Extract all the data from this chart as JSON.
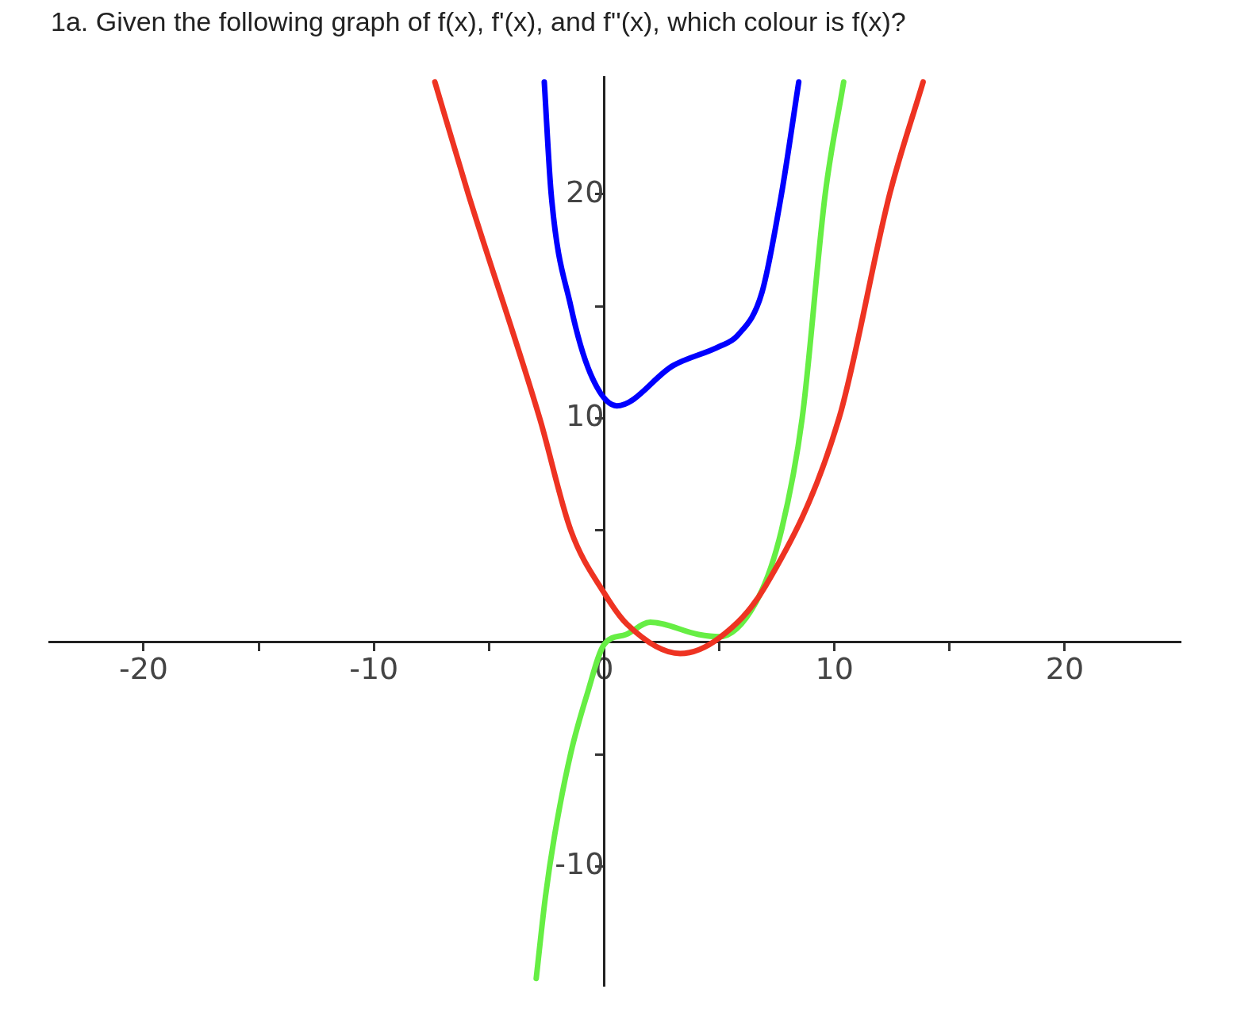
{
  "chart_data": {
    "type": "line",
    "title": "1a. Given the following graph of f(x), f'(x), and f''(x), which colour is f(x)?",
    "xlim": [
      -24.1,
      25
    ],
    "ylim": [
      -15.3,
      25.2
    ],
    "xticks": [
      -20,
      {
        "value": -15,
        "label": null
      },
      -10,
      {
        "value": -5,
        "label": null
      },
      0,
      {
        "value": 5,
        "label": null
      },
      10,
      {
        "value": 15,
        "label": null
      },
      20
    ],
    "yticks": [
      -10,
      {
        "value": -5,
        "label": null
      },
      {
        "value": 5,
        "label": null
      },
      10,
      {
        "value": 15,
        "label": null
      },
      20
    ],
    "grid": false,
    "marker": "none",
    "line_style": "solid",
    "series": [
      {
        "color": "#ee3322",
        "x": [
          -7.35,
          -5.9,
          -2.8,
          -1.45,
          0,
          1,
          3.3,
          5,
          7,
          10.2,
          12.4,
          13.85
        ],
        "values": [
          25,
          20,
          10,
          5,
          2.2,
          0.8,
          -0.5,
          0.2,
          2.5,
          10,
          20,
          25
        ]
      },
      {
        "color": "#0000ff",
        "x": [
          -2.6,
          -2.3,
          -1.45,
          -0.6,
          0.55,
          3,
          5,
          5.8,
          6.85,
          7.7,
          8.45
        ],
        "values": [
          25,
          20,
          15,
          12,
          10.55,
          12.35,
          13.2,
          13.7,
          15.6,
          20,
          25
        ]
      },
      {
        "color": "#66ee44",
        "x": [
          -2.95,
          -2.55,
          -2.15,
          -1.45,
          -0.75,
          0,
          0.95,
          2,
          4.1,
          5,
          6.7,
          7.7,
          8.6,
          9.6,
          10.4
        ],
        "values": [
          -15,
          -11.35,
          -8.6,
          -4.95,
          -2.35,
          -0.1,
          0.35,
          0.9,
          0.35,
          0.25,
          2,
          5,
          10,
          20,
          25
        ]
      }
    ]
  }
}
